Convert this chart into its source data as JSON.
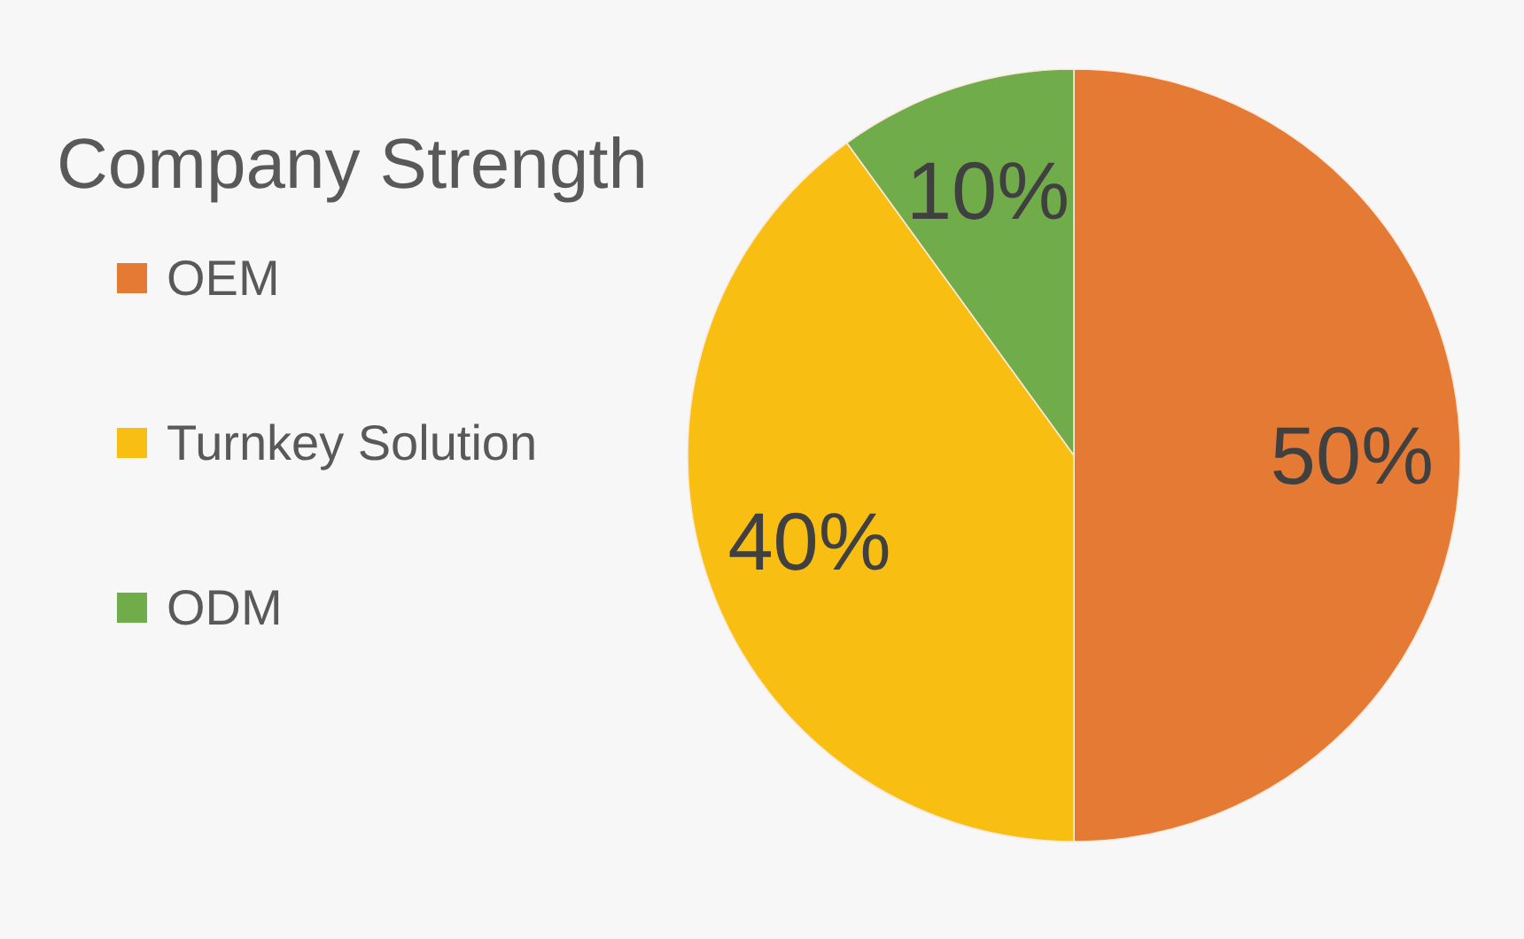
{
  "chart_data": {
    "type": "pie",
    "title": "Company Strength",
    "categories": [
      "OEM",
      "Turnkey Solution",
      "ODM"
    ],
    "values": [
      50,
      40,
      10
    ],
    "colors": [
      "#e47a33",
      "#f8bf12",
      "#71ac4a"
    ],
    "value_labels": [
      "50%",
      "40%",
      "10%"
    ],
    "legend": "left"
  }
}
